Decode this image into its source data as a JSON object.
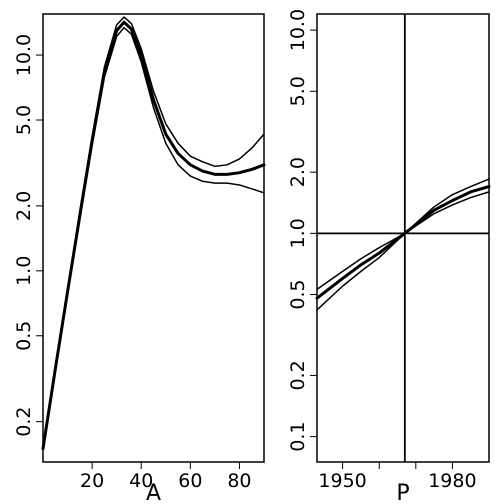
{
  "chart_data": [
    {
      "type": "line",
      "panel": "left",
      "xlabel": "A",
      "ylabel": "",
      "x_scale": "linear",
      "y_scale": "log",
      "xlim": [
        0,
        90
      ],
      "ylim": [
        0.13,
        15.5
      ],
      "x_ticks": [
        20,
        40,
        60,
        80
      ],
      "x_tick_labels": [
        "20",
        "40",
        "60",
        "80"
      ],
      "y_ticks": [
        0.2,
        0.5,
        1,
        2,
        5,
        10
      ],
      "y_tick_labels": [
        "0.2",
        "0.5",
        "1.0",
        "2.0",
        "5.0",
        "10.0"
      ],
      "grid": false,
      "series": [
        {
          "role": "estimate",
          "stroke_width": 3,
          "x": [
            0,
            5,
            10,
            15,
            20,
            25,
            30,
            33,
            36,
            40,
            45,
            50,
            55,
            60,
            65,
            70,
            75,
            80,
            85,
            90
          ],
          "y": [
            0.15,
            0.35,
            0.8,
            1.8,
            4.0,
            8.3,
            13.0,
            14.2,
            13.2,
            10.0,
            6.2,
            4.3,
            3.5,
            3.1,
            2.9,
            2.8,
            2.8,
            2.85,
            2.95,
            3.1
          ]
        },
        {
          "role": "upper band",
          "stroke_width": 1.5,
          "x": [
            0,
            5,
            10,
            15,
            20,
            25,
            30,
            33,
            36,
            40,
            45,
            50,
            55,
            60,
            65,
            70,
            75,
            80,
            85,
            90
          ],
          "y": [
            0.15,
            0.36,
            0.82,
            1.9,
            4.2,
            8.8,
            13.8,
            15.0,
            14.0,
            10.7,
            6.8,
            4.8,
            3.9,
            3.4,
            3.2,
            3.05,
            3.1,
            3.3,
            3.7,
            4.3
          ]
        },
        {
          "role": "lower band",
          "stroke_width": 1.5,
          "x": [
            0,
            5,
            10,
            15,
            20,
            25,
            30,
            33,
            36,
            40,
            45,
            50,
            55,
            60,
            65,
            70,
            75,
            80,
            85,
            90
          ],
          "y": [
            0.15,
            0.34,
            0.78,
            1.75,
            3.8,
            7.9,
            12.2,
            13.4,
            12.5,
            9.3,
            5.7,
            3.9,
            3.1,
            2.75,
            2.6,
            2.55,
            2.55,
            2.5,
            2.4,
            2.3
          ]
        }
      ]
    },
    {
      "type": "line",
      "panel": "right",
      "xlabel": "P",
      "ylabel": "",
      "x_scale": "linear",
      "y_scale": "log",
      "xlim": [
        1943,
        1990
      ],
      "ylim": [
        0.075,
        12
      ],
      "x_ticks": [
        1950,
        1980
      ],
      "x_tick_labels": [
        "1950",
        "1980"
      ],
      "x_minor_ticks": [
        1960,
        1970
      ],
      "y_ticks": [
        0.1,
        0.2,
        0.5,
        1,
        2,
        5,
        10
      ],
      "y_tick_labels": [
        "0.1",
        "0.2",
        "0.5",
        "1.0",
        "2.0",
        "5.0",
        "10.0"
      ],
      "reference_lines": {
        "vertical_x": 1967,
        "horizontal_y": 1.0
      },
      "grid": false,
      "series": [
        {
          "role": "estimate",
          "stroke_width": 3,
          "x": [
            1943,
            1950,
            1955,
            1960,
            1967,
            1975,
            1980,
            1985,
            1990
          ],
          "y": [
            0.48,
            0.6,
            0.7,
            0.8,
            1.0,
            1.3,
            1.45,
            1.6,
            1.7
          ]
        },
        {
          "role": "upper band",
          "stroke_width": 1.5,
          "x": [
            1943,
            1950,
            1955,
            1960,
            1967,
            1975,
            1980,
            1985,
            1990
          ],
          "y": [
            0.53,
            0.65,
            0.75,
            0.85,
            1.0,
            1.35,
            1.55,
            1.7,
            1.85
          ]
        },
        {
          "role": "lower band",
          "stroke_width": 1.5,
          "x": [
            1943,
            1950,
            1955,
            1960,
            1967,
            1975,
            1980,
            1985,
            1990
          ],
          "y": [
            0.42,
            0.55,
            0.65,
            0.76,
            1.0,
            1.25,
            1.38,
            1.5,
            1.6
          ]
        }
      ]
    }
  ]
}
